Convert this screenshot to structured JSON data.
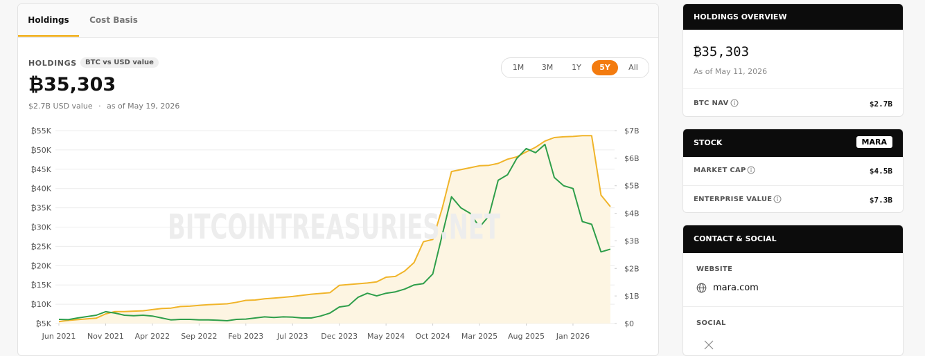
{
  "tabs": [
    "Holdings",
    "Cost Basis"
  ],
  "summary": {
    "label": "HOLDINGS",
    "badge": "BTC vs USD value",
    "value": "₿35,303",
    "usd_value": "$2.7B USD value",
    "separator": "·",
    "as_of": "as of May 19, 2026"
  },
  "ranges": [
    "1M",
    "3M",
    "1Y",
    "5Y",
    "All"
  ],
  "watermark": "BITCOINTREASURIES.NET",
  "chart_data": {
    "type": "line",
    "x": [
      "2021-06",
      "2021-07",
      "2021-08",
      "2021-09",
      "2021-10",
      "2021-11",
      "2021-12",
      "2022-01",
      "2022-02",
      "2022-03",
      "2022-04",
      "2022-05",
      "2022-06",
      "2022-07",
      "2022-08",
      "2022-09",
      "2022-10",
      "2022-11",
      "2022-12",
      "2023-01",
      "2023-02",
      "2023-03",
      "2023-04",
      "2023-05",
      "2023-06",
      "2023-07",
      "2023-08",
      "2023-09",
      "2023-10",
      "2023-11",
      "2023-12",
      "2024-01",
      "2024-02",
      "2024-03",
      "2024-04",
      "2024-05",
      "2024-06",
      "2024-07",
      "2024-08",
      "2024-09",
      "2024-10",
      "2024-11",
      "2024-12",
      "2025-01",
      "2025-02",
      "2025-03",
      "2025-04",
      "2025-05",
      "2025-06",
      "2025-07",
      "2025-08",
      "2025-09",
      "2025-10",
      "2025-11",
      "2025-12",
      "2026-01",
      "2026-02",
      "2026-03",
      "2026-04",
      "2026-05"
    ],
    "series": [
      {
        "color": "#f0b429",
        "fill": "#fdf5e2",
        "values": [
          5500,
          5800,
          6000,
          6200,
          6400,
          7500,
          8100,
          8100,
          8200,
          8300,
          8600,
          8900,
          9000,
          9400,
          9500,
          9700,
          9900,
          10000,
          10100,
          10500,
          11000,
          11100,
          11400,
          11600,
          11800,
          12000,
          12300,
          12600,
          12800,
          13000,
          14900,
          15100,
          15300,
          15500,
          15800,
          17000,
          17200,
          18600,
          20800,
          26200,
          26800,
          34800,
          44400,
          44900,
          45400,
          45900,
          46000,
          46500,
          47600,
          48200,
          49500,
          50700,
          52300,
          53200,
          53400,
          53500,
          53700,
          53700,
          38300,
          35303
        ]
      },
      {
        "color": "#2e9e4a",
        "axis": "y2",
        "values": [
          150000000,
          140000000,
          200000000,
          250000000,
          300000000,
          430000000,
          380000000,
          300000000,
          280000000,
          300000000,
          270000000,
          200000000,
          130000000,
          150000000,
          150000000,
          130000000,
          130000000,
          120000000,
          100000000,
          150000000,
          160000000,
          200000000,
          240000000,
          220000000,
          240000000,
          230000000,
          200000000,
          200000000,
          270000000,
          380000000,
          600000000,
          650000000,
          950000000,
          1100000000,
          1000000000,
          1100000000,
          1150000000,
          1250000000,
          1400000000,
          1450000000,
          1800000000,
          3200000000,
          4600000000,
          4200000000,
          4000000000,
          3500000000,
          3900000000,
          5200000000,
          5400000000,
          6000000000,
          6350000000,
          6200000000,
          6500000000,
          5300000000,
          5000000000,
          4900000000,
          3700000000,
          3600000000,
          2600000000,
          2700000000
        ]
      }
    ],
    "ylim": [
      5000,
      55000
    ],
    "yticks": [
      {
        "value": 5000,
        "label": "₿5K"
      },
      {
        "value": 10000,
        "label": "₿10K"
      },
      {
        "value": 15000,
        "label": "₿15K"
      },
      {
        "value": 20000,
        "label": "₿20K"
      },
      {
        "value": 25000,
        "label": "₿25K"
      },
      {
        "value": 30000,
        "label": "₿30K"
      },
      {
        "value": 35000,
        "label": "₿35K"
      },
      {
        "value": 40000,
        "label": "₿40K"
      },
      {
        "value": 45000,
        "label": "₿45K"
      },
      {
        "value": 50000,
        "label": "₿50K"
      },
      {
        "value": 55000,
        "label": "₿55K"
      }
    ],
    "y2lim": [
      0,
      7000000000
    ],
    "y2ticks": [
      {
        "value": 0,
        "label": "$0"
      },
      {
        "value": 1000000000,
        "label": "$1B"
      },
      {
        "value": 2000000000,
        "label": "$2B"
      },
      {
        "value": 3000000000,
        "label": "$3B"
      },
      {
        "value": 4000000000,
        "label": "$4B"
      },
      {
        "value": 5000000000,
        "label": "$5B"
      },
      {
        "value": 6000000000,
        "label": "$6B"
      },
      {
        "value": 7000000000,
        "label": "$7B"
      }
    ],
    "xticks": [
      {
        "value": "2021-06",
        "label": "Jun 2021"
      },
      {
        "value": "2021-11",
        "label": "Nov 2021"
      },
      {
        "value": "2022-04",
        "label": "Apr 2022"
      },
      {
        "value": "2022-09",
        "label": "Sep 2022"
      },
      {
        "value": "2023-02",
        "label": "Feb 2023"
      },
      {
        "value": "2023-07",
        "label": "Jul 2023"
      },
      {
        "value": "2023-12",
        "label": "Dec 2023"
      },
      {
        "value": "2024-05",
        "label": "May 2024"
      },
      {
        "value": "2024-10",
        "label": "Oct 2024"
      },
      {
        "value": "2025-03",
        "label": "Mar 2025"
      },
      {
        "value": "2025-08",
        "label": "Aug 2025"
      },
      {
        "value": "2026-01",
        "label": "Jan 2026"
      }
    ],
    "grid": true
  },
  "sidebar": {
    "overview": {
      "title": "HOLDINGS OVERVIEW",
      "value": "₿35,303",
      "as_of": "As of May 11, 2026",
      "nav_label": "BTC NAV",
      "nav_value": "$2.7B"
    },
    "stock": {
      "title": "STOCK",
      "ticker": "MARA",
      "rows": [
        [
          "MARKET CAP",
          "$4.5B"
        ],
        [
          "ENTERPRISE VALUE",
          "$7.3B"
        ]
      ]
    },
    "contact": {
      "title": "CONTACT & SOCIAL",
      "website_label": "WEBSITE",
      "website": "mara.com",
      "social_label": "SOCIAL"
    }
  }
}
